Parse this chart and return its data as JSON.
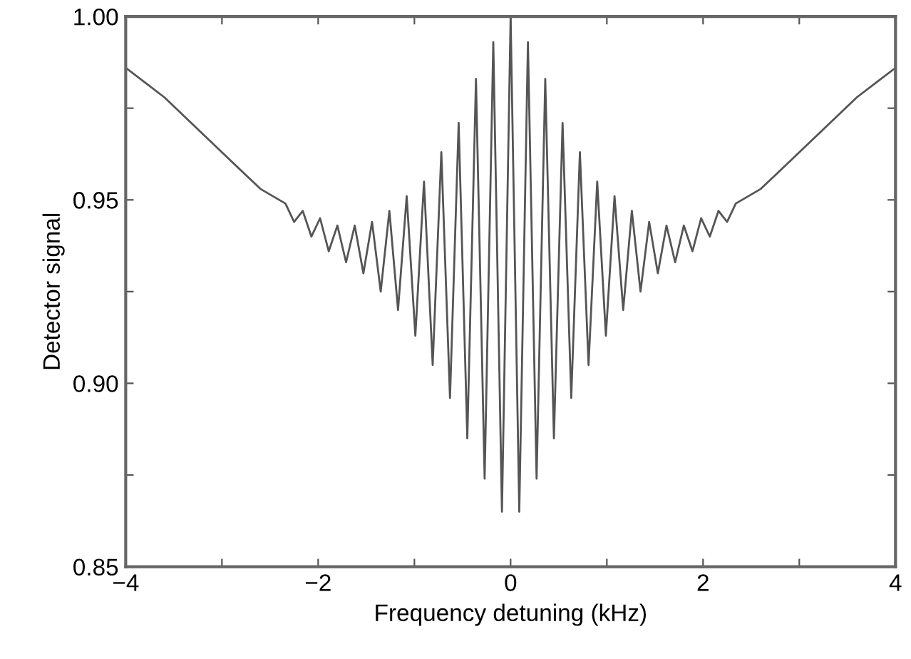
{
  "chart_data": {
    "type": "line",
    "xlabel": "Frequency detuning (kHz)",
    "ylabel": "Detector signal",
    "xlim": [
      -4,
      4
    ],
    "ylim": [
      0.85,
      1.0
    ],
    "xticks": [
      {
        "value": -4,
        "label": "−4"
      },
      {
        "value": -3,
        "label": null
      },
      {
        "value": -2,
        "label": "−2"
      },
      {
        "value": -1,
        "label": null
      },
      0,
      {
        "value": 1,
        "label": null
      },
      2,
      {
        "value": 3,
        "label": null
      },
      4
    ],
    "yticks": [
      {
        "value": 0.85,
        "label": "0.85"
      },
      {
        "value": 0.875,
        "label": null
      },
      {
        "value": 0.9,
        "label": "0.90"
      },
      {
        "value": 0.925,
        "label": null
      },
      {
        "value": 0.95,
        "label": "0.95"
      },
      {
        "value": 0.975,
        "label": null
      },
      {
        "value": 1.0,
        "label": "1.00"
      }
    ],
    "grid": false,
    "marker": "none",
    "line_style": "solid",
    "series": [
      {
        "color": "#555555",
        "x": [
          -4.0,
          -3.8,
          -3.6,
          -3.4,
          -3.2,
          -3.0,
          -2.8,
          -2.6,
          -2.34,
          -2.25,
          -2.16,
          -2.07,
          -1.98,
          -1.89,
          -1.8,
          -1.71,
          -1.62,
          -1.53,
          -1.44,
          -1.35,
          -1.26,
          -1.17,
          -1.08,
          -0.99,
          -0.9,
          -0.81,
          -0.72,
          -0.63,
          -0.54,
          -0.45,
          -0.36,
          -0.27,
          -0.18,
          -0.09,
          0,
          0.09,
          0.18,
          0.27,
          0.36,
          0.45,
          0.54,
          0.63,
          0.72,
          0.81,
          0.9,
          0.99,
          1.08,
          1.17,
          1.26,
          1.35,
          1.44,
          1.53,
          1.62,
          1.71,
          1.8,
          1.89,
          1.98,
          2.07,
          2.16,
          2.25,
          2.34,
          2.6,
          2.8,
          3.0,
          3.2,
          3.4,
          3.6,
          3.8,
          4.0
        ],
        "values": [
          0.986,
          0.982,
          0.978,
          0.973,
          0.968,
          0.963,
          0.958,
          0.953,
          0.949,
          0.944,
          0.947,
          0.94,
          0.945,
          0.936,
          0.943,
          0.933,
          0.943,
          0.93,
          0.944,
          0.925,
          0.947,
          0.92,
          0.951,
          0.913,
          0.955,
          0.905,
          0.963,
          0.896,
          0.971,
          0.885,
          0.983,
          0.874,
          0.993,
          0.865,
          1.0,
          0.865,
          0.993,
          0.874,
          0.983,
          0.885,
          0.971,
          0.896,
          0.963,
          0.905,
          0.955,
          0.913,
          0.951,
          0.92,
          0.947,
          0.925,
          0.944,
          0.93,
          0.943,
          0.933,
          0.943,
          0.936,
          0.945,
          0.94,
          0.947,
          0.944,
          0.949,
          0.953,
          0.958,
          0.963,
          0.968,
          0.973,
          0.978,
          0.982,
          0.986
        ]
      }
    ]
  }
}
